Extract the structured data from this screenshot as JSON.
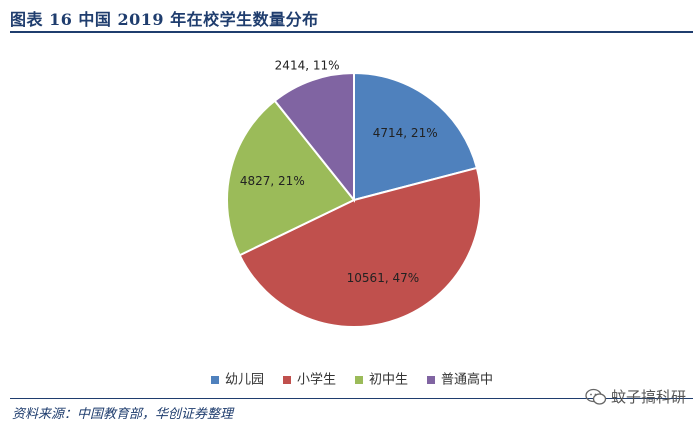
{
  "figure": {
    "title": "图表 16 中国 2019 年在校学生数量分布",
    "source": "资料来源：中国教育部，华创证券整理",
    "watermark_text": "蚊子搞科研"
  },
  "colors": {
    "title": "#1f3d6e",
    "series": [
      "#4f81bd",
      "#c0504d",
      "#9bbb59",
      "#8064a2"
    ]
  },
  "chart_data": {
    "type": "pie",
    "slices": [
      {
        "label": "幼儿园",
        "value": 4714,
        "percent": "21%"
      },
      {
        "label": "小学生",
        "value": 10561,
        "percent": "47%"
      },
      {
        "label": "初中生",
        "value": 4827,
        "percent": "21%"
      },
      {
        "label": "普通高中",
        "value": 2414,
        "percent": "11%"
      }
    ],
    "legend_position": "bottom"
  }
}
